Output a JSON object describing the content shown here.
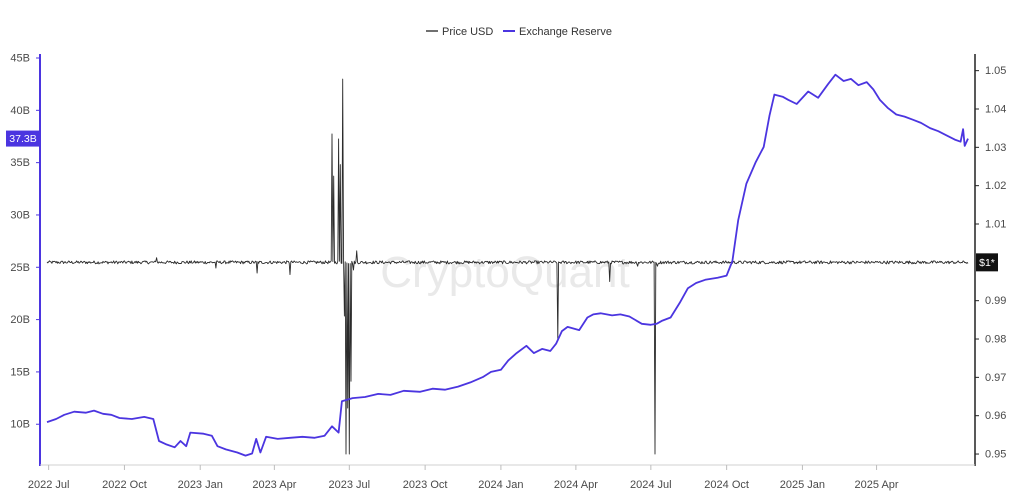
{
  "chart_data": {
    "type": "line",
    "legend": {
      "position": "top-center",
      "items": [
        {
          "key": "price",
          "label": "Price USD",
          "color": "#333333"
        },
        {
          "key": "reserve",
          "label": "Exchange Reserve",
          "color": "#4b35e0"
        }
      ]
    },
    "watermark": "CryptoQuant",
    "x_axis": {
      "start": "2022-06-29",
      "end": "2025-07-21",
      "ticks": [
        {
          "date": "2022-07-01",
          "label": "2022 Jul"
        },
        {
          "date": "2022-10-01",
          "label": "2022 Oct"
        },
        {
          "date": "2023-01-01",
          "label": "2023 Jan"
        },
        {
          "date": "2023-04-01",
          "label": "2023 Apr"
        },
        {
          "date": "2023-07-01",
          "label": "2023 Jul"
        },
        {
          "date": "2023-10-01",
          "label": "2023 Oct"
        },
        {
          "date": "2024-01-01",
          "label": "2024 Jan"
        },
        {
          "date": "2024-04-01",
          "label": "2024 Apr"
        },
        {
          "date": "2024-07-01",
          "label": "2024 Jul"
        },
        {
          "date": "2024-10-01",
          "label": "2024 Oct"
        },
        {
          "date": "2025-01-01",
          "label": "2025 Jan"
        },
        {
          "date": "2025-04-01",
          "label": "2025 Apr"
        }
      ]
    },
    "y_left": {
      "ylim": [
        6.2,
        45
      ],
      "ticks": [
        {
          "value": 10,
          "label": "10B"
        },
        {
          "value": 15,
          "label": "15B"
        },
        {
          "value": 20,
          "label": "20B"
        },
        {
          "value": 25,
          "label": "25B"
        },
        {
          "value": 30,
          "label": "30B"
        },
        {
          "value": 35,
          "label": "35B"
        },
        {
          "value": 40,
          "label": "40B"
        },
        {
          "value": 45,
          "label": "45B"
        }
      ],
      "current_label": "37.3B",
      "current_value": 37.3,
      "color": "#4b35e0"
    },
    "y_right": {
      "ylim": [
        0.9474,
        1.0533
      ],
      "ticks": [
        {
          "value": 0.95,
          "label": "0.95"
        },
        {
          "value": 0.96,
          "label": "0.96"
        },
        {
          "value": 0.97,
          "label": "0.97"
        },
        {
          "value": 0.98,
          "label": "0.98"
        },
        {
          "value": 0.99,
          "label": "0.99"
        },
        {
          "value": 1.01,
          "label": "1.01"
        },
        {
          "value": 1.02,
          "label": "1.02"
        },
        {
          "value": 1.03,
          "label": "1.03"
        },
        {
          "value": 1.04,
          "label": "1.04"
        },
        {
          "value": 1.05,
          "label": "1.05"
        }
      ],
      "current_label": "$1*",
      "current_value": 1.0
    },
    "series": [
      {
        "name": "Exchange Reserve",
        "unit": "B",
        "color": "#4b35e0",
        "points": [
          [
            "2022-06-29",
            10.2
          ],
          [
            "2022-07-10",
            10.5
          ],
          [
            "2022-07-20",
            10.9
          ],
          [
            "2022-08-01",
            11.2
          ],
          [
            "2022-08-15",
            11.1
          ],
          [
            "2022-08-25",
            11.3
          ],
          [
            "2022-09-05",
            11.0
          ],
          [
            "2022-09-15",
            10.9
          ],
          [
            "2022-09-25",
            10.6
          ],
          [
            "2022-10-10",
            10.5
          ],
          [
            "2022-10-25",
            10.7
          ],
          [
            "2022-11-05",
            10.5
          ],
          [
            "2022-11-12",
            8.4
          ],
          [
            "2022-11-20",
            8.1
          ],
          [
            "2022-12-01",
            7.8
          ],
          [
            "2022-12-08",
            8.4
          ],
          [
            "2022-12-15",
            7.9
          ],
          [
            "2022-12-20",
            9.2
          ],
          [
            "2023-01-05",
            9.1
          ],
          [
            "2023-01-15",
            8.9
          ],
          [
            "2023-01-22",
            7.9
          ],
          [
            "2023-02-01",
            7.6
          ],
          [
            "2023-02-15",
            7.3
          ],
          [
            "2023-02-25",
            7.0
          ],
          [
            "2023-03-05",
            7.2
          ],
          [
            "2023-03-10",
            8.6
          ],
          [
            "2023-03-15",
            7.3
          ],
          [
            "2023-03-22",
            8.8
          ],
          [
            "2023-04-05",
            8.6
          ],
          [
            "2023-04-20",
            8.7
          ],
          [
            "2023-05-05",
            8.8
          ],
          [
            "2023-05-20",
            8.7
          ],
          [
            "2023-06-01",
            8.9
          ],
          [
            "2023-06-10",
            9.8
          ],
          [
            "2023-06-18",
            9.2
          ],
          [
            "2023-06-22",
            12.2
          ],
          [
            "2023-07-05",
            12.5
          ],
          [
            "2023-07-20",
            12.6
          ],
          [
            "2023-08-05",
            12.9
          ],
          [
            "2023-08-20",
            12.8
          ],
          [
            "2023-09-05",
            13.2
          ],
          [
            "2023-09-25",
            13.1
          ],
          [
            "2023-10-10",
            13.4
          ],
          [
            "2023-10-25",
            13.3
          ],
          [
            "2023-11-10",
            13.6
          ],
          [
            "2023-11-25",
            14.0
          ],
          [
            "2023-12-10",
            14.5
          ],
          [
            "2023-12-20",
            15.0
          ],
          [
            "2024-01-01",
            15.2
          ],
          [
            "2024-01-10",
            16.1
          ],
          [
            "2024-01-20",
            16.8
          ],
          [
            "2024-02-01",
            17.5
          ],
          [
            "2024-02-10",
            16.8
          ],
          [
            "2024-02-20",
            17.2
          ],
          [
            "2024-03-01",
            17.0
          ],
          [
            "2024-03-08",
            17.7
          ],
          [
            "2024-03-15",
            18.9
          ],
          [
            "2024-03-22",
            19.3
          ],
          [
            "2024-04-05",
            19.0
          ],
          [
            "2024-04-15",
            20.2
          ],
          [
            "2024-04-22",
            20.5
          ],
          [
            "2024-05-01",
            20.6
          ],
          [
            "2024-05-15",
            20.4
          ],
          [
            "2024-05-25",
            20.5
          ],
          [
            "2024-06-05",
            20.3
          ],
          [
            "2024-06-20",
            19.6
          ],
          [
            "2024-07-01",
            19.5
          ],
          [
            "2024-07-08",
            19.6
          ],
          [
            "2024-07-15",
            19.9
          ],
          [
            "2024-07-25",
            20.2
          ],
          [
            "2024-08-05",
            21.6
          ],
          [
            "2024-08-15",
            23.0
          ],
          [
            "2024-08-25",
            23.5
          ],
          [
            "2024-09-05",
            23.8
          ],
          [
            "2024-09-20",
            24.0
          ],
          [
            "2024-10-01",
            24.2
          ],
          [
            "2024-10-08",
            25.6
          ],
          [
            "2024-10-15",
            29.5
          ],
          [
            "2024-10-25",
            33.0
          ],
          [
            "2024-11-05",
            35.0
          ],
          [
            "2024-11-15",
            36.5
          ],
          [
            "2024-11-22",
            39.5
          ],
          [
            "2024-11-28",
            41.5
          ],
          [
            "2024-12-08",
            41.3
          ],
          [
            "2024-12-15",
            41.0
          ],
          [
            "2024-12-25",
            40.6
          ],
          [
            "2025-01-08",
            41.8
          ],
          [
            "2025-01-20",
            41.2
          ],
          [
            "2025-02-01",
            42.5
          ],
          [
            "2025-02-10",
            43.4
          ],
          [
            "2025-02-20",
            42.8
          ],
          [
            "2025-03-01",
            43.0
          ],
          [
            "2025-03-10",
            42.4
          ],
          [
            "2025-03-20",
            42.7
          ],
          [
            "2025-03-28",
            42.0
          ],
          [
            "2025-04-05",
            41.0
          ],
          [
            "2025-04-15",
            40.2
          ],
          [
            "2025-04-25",
            39.6
          ],
          [
            "2025-05-05",
            39.4
          ],
          [
            "2025-05-15",
            39.1
          ],
          [
            "2025-05-25",
            38.8
          ],
          [
            "2025-06-05",
            38.3
          ],
          [
            "2025-06-15",
            38.0
          ],
          [
            "2025-06-25",
            37.6
          ],
          [
            "2025-07-05",
            37.2
          ],
          [
            "2025-07-12",
            37.0
          ],
          [
            "2025-07-15",
            38.2
          ],
          [
            "2025-07-17",
            36.6
          ],
          [
            "2025-07-21",
            37.3
          ]
        ]
      },
      {
        "name": "Price USD",
        "color": "#2b2b2b",
        "base": 1.0,
        "noise": 0.0004,
        "spikes": [
          [
            "2022-11-09",
            1.0012
          ],
          [
            "2023-01-20",
            0.9985
          ],
          [
            "2023-03-11",
            0.9972
          ],
          [
            "2023-04-20",
            0.9968
          ],
          [
            "2023-06-10",
            1.0335
          ],
          [
            "2023-06-12",
            1.0225
          ],
          [
            "2023-06-18",
            1.0322
          ],
          [
            "2023-06-20",
            1.0255
          ],
          [
            "2023-06-23",
            1.0478
          ],
          [
            "2023-06-25",
            0.986
          ],
          [
            "2023-06-27",
            0.95
          ],
          [
            "2023-06-29",
            0.962
          ],
          [
            "2023-07-01",
            0.95
          ],
          [
            "2023-07-03",
            0.969
          ],
          [
            "2023-07-06",
            0.998
          ],
          [
            "2023-07-10",
            1.003
          ],
          [
            "2024-03-10",
            0.98
          ],
          [
            "2024-05-12",
            0.995
          ],
          [
            "2024-06-15",
            0.999
          ],
          [
            "2024-07-06",
            0.95
          ],
          [
            "2024-07-09",
            0.999
          ]
        ]
      }
    ]
  }
}
